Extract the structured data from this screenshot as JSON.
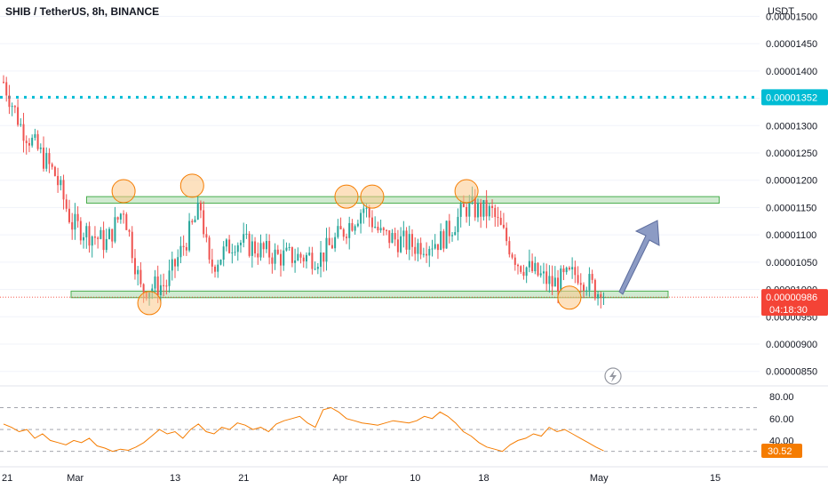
{
  "header": {
    "title": "SHIB / TetherUS, 8h, BINANCE"
  },
  "price_axis": {
    "unit": "USDT",
    "ticks": [
      "0.00001500",
      "0.00001450",
      "0.00001400",
      "0.00001350",
      "0.00001300",
      "0.00001250",
      "0.00001200",
      "0.00001150",
      "0.00001100",
      "0.00001050",
      "0.00001000",
      "0.00000950",
      "0.00000900",
      "0.00000850"
    ]
  },
  "time_axis": {
    "labels": [
      "21",
      "Mar",
      "13",
      "21",
      "Apr",
      "10",
      "18",
      "May",
      "15"
    ]
  },
  "markers": {
    "resistance_price_label": "0.00001352",
    "last_price_label": "0.00000986",
    "countdown": "04:18:30"
  },
  "rsi": {
    "ticks": [
      "80.00",
      "60.00",
      "40.00"
    ],
    "value_label": "30.52",
    "levels": [
      70,
      50,
      30
    ]
  },
  "colors": {
    "candle_up": "#26a69a",
    "candle_down": "#ef5350",
    "dotted_line": "#00bcd4",
    "zone_fill": "#c8e6c9",
    "zone_stroke": "#4caf50",
    "circle": "#f57c00",
    "arrow": "#8c9bc4",
    "rsi_line": "#f57c00",
    "last_price": "#f44336"
  },
  "chart_data": {
    "type": "candlestick",
    "title": "SHIB / TetherUS, 8h, BINANCE",
    "y_unit": "USDT",
    "ylim": [
      8.3e-06,
      1.53e-05
    ],
    "resistance_line": 1.352e-05,
    "zones": [
      {
        "name": "resistance-zone",
        "range": [
          1.158e-05,
          1.17e-05
        ]
      },
      {
        "name": "support-zone",
        "range": [
          9.85e-06,
          9.97e-06
        ]
      }
    ],
    "last_price": 9.86e-06,
    "anchors": [
      {
        "t": "Feb 21",
        "price": 1.38e-05
      },
      {
        "t": "Feb 23",
        "price": 1.3e-05
      },
      {
        "t": "Feb 27",
        "price": 1.21e-05
      },
      {
        "t": "Mar 1",
        "price": 1.12e-05
      },
      {
        "t": "Mar 5",
        "price": 1.085e-05
      },
      {
        "t": "Mar 7",
        "price": 1.15e-05
      },
      {
        "t": "Mar 9",
        "price": 1e-05
      },
      {
        "t": "Mar 12",
        "price": 1.01e-05
      },
      {
        "t": "Mar 16",
        "price": 1.15e-05
      },
      {
        "t": "Mar 17",
        "price": 1.04e-05
      },
      {
        "t": "Mar 20",
        "price": 1.09e-05
      },
      {
        "t": "Mar 25",
        "price": 1.06e-05
      },
      {
        "t": "Mar 30",
        "price": 1.06e-05
      },
      {
        "t": "Apr 4",
        "price": 1.15e-05
      },
      {
        "t": "Apr 6",
        "price": 1.1e-05
      },
      {
        "t": "Apr 10",
        "price": 1.08e-05
      },
      {
        "t": "Apr 13",
        "price": 1.09e-05
      },
      {
        "t": "Apr 16",
        "price": 1.15e-05
      },
      {
        "t": "Apr 19",
        "price": 1.14e-05
      },
      {
        "t": "Apr 22",
        "price": 1.05e-05
      },
      {
        "t": "Apr 26",
        "price": 1.01e-05
      },
      {
        "t": "Apr 29",
        "price": 1.03e-05
      },
      {
        "t": "May 2",
        "price": 9.86e-06
      }
    ],
    "rsi": {
      "ylim": [
        20,
        85
      ],
      "values": [
        55,
        52,
        48,
        50,
        42,
        46,
        40,
        38,
        36,
        40,
        38,
        42,
        35,
        33,
        30,
        32,
        31,
        34,
        38,
        44,
        50,
        46,
        48,
        42,
        50,
        55,
        48,
        46,
        52,
        50,
        56,
        54,
        50,
        52,
        48,
        55,
        58,
        60,
        62,
        56,
        52,
        68,
        70,
        66,
        60,
        58,
        56,
        55,
        54,
        56,
        58,
        57,
        56,
        58,
        62,
        60,
        66,
        62,
        56,
        48,
        44,
        38,
        34,
        32,
        30,
        36,
        40,
        42,
        46,
        44,
        52,
        48,
        50,
        46,
        42,
        38,
        34,
        30.52
      ]
    }
  }
}
